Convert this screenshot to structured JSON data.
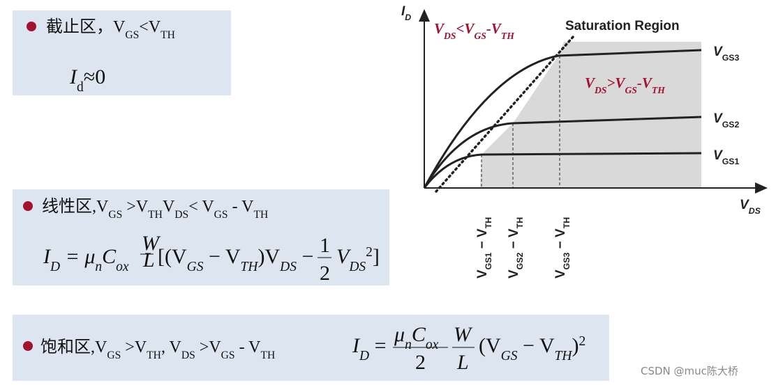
{
  "regions": [
    {
      "heading": [
        "截止区，",
        "V",
        "GS",
        "<V",
        "TH"
      ],
      "formula": [
        "I",
        "d",
        "≈0"
      ]
    },
    {
      "heading": [
        "线性区,V",
        "GS",
        " >V",
        "TH",
        "V",
        "DS",
        "< V",
        "GS",
        " - V",
        "TH"
      ],
      "formula": [
        "I",
        "D",
        " = μ",
        "n",
        "C",
        "ox",
        "W",
        "L",
        "[(V",
        "GS",
        " − V",
        "TH",
        ")V",
        "DS",
        " − ",
        "1",
        "2",
        "V",
        "DS",
        "2",
        "]"
      ]
    },
    {
      "heading": [
        "饱和区,V",
        "GS",
        " >V",
        "TH",
        ", V",
        "DS",
        " >V",
        "GS",
        " - V",
        "TH"
      ],
      "formula": [
        "I",
        "D",
        " = ",
        "μ",
        "n",
        "C",
        "ox",
        "2",
        "W",
        "L",
        "(V",
        "GS",
        " − V",
        "TH",
        ")",
        "2"
      ]
    }
  ],
  "diagram": {
    "y_axis": [
      "I",
      "D"
    ],
    "x_axis": [
      "V",
      "DS"
    ],
    "triode_label": [
      "V",
      "DS",
      "<V",
      "GS",
      "-V",
      "TH"
    ],
    "saturation_title": "Saturation Region",
    "saturation_label": [
      "V",
      "DS",
      ">V",
      "GS",
      "-V",
      "TH"
    ],
    "curves": [
      [
        "V",
        "GS3"
      ],
      [
        "V",
        "GS2"
      ],
      [
        "V",
        "GS1"
      ]
    ],
    "markers": [
      [
        "V",
        "GS1",
        " − V",
        "TH"
      ],
      [
        "V",
        "GS2",
        " − V",
        "TH"
      ],
      [
        "V",
        "GS3",
        " − V",
        "TH"
      ]
    ]
  },
  "watermark": "CSDN @muc陈大桥"
}
